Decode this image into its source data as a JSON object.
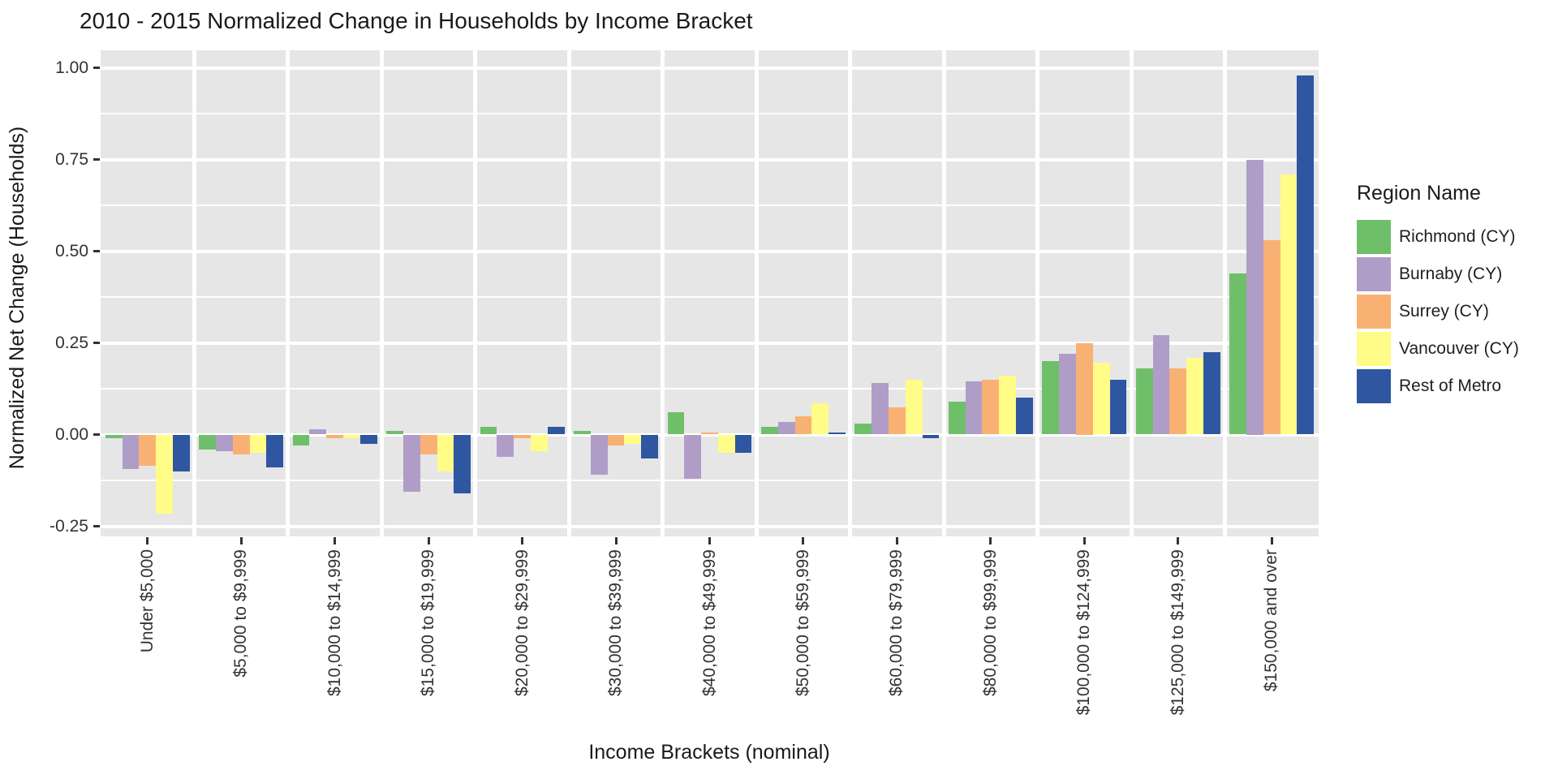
{
  "title": "2010 - 2015 Normalized Change in Households by Income Bracket",
  "legend": {
    "title": "Region Name",
    "position": "right"
  },
  "colors": {
    "panel_background": "#E6E6E6",
    "gridline": "#FFFFFF",
    "tick": "#333333",
    "richmond": "#6FBF6A",
    "burnaby": "#AF9DC8",
    "surrey": "#F9B173",
    "vancouver": "#FFFC87",
    "rest_of_metro": "#2E56A1"
  },
  "chart_data": {
    "type": "bar",
    "title": "2010 - 2015 Normalized Change in Households by Income Bracket",
    "xlabel": "Income Brackets (nominal)",
    "ylabel": "Normalized Net Change (Households)",
    "ylim": [
      -0.278,
      1.048
    ],
    "grid": "white major+minor horizontal lines and vertical group-boundary lines on gray panel",
    "legend_position": "right",
    "y_ticks": [
      {
        "value": 1.0,
        "label": "1.00"
      },
      {
        "value": 0.75,
        "label": "0.75"
      },
      {
        "value": 0.5,
        "label": "0.50"
      },
      {
        "value": 0.25,
        "label": "0.25"
      },
      {
        "value": 0.0,
        "label": "0.00"
      },
      {
        "value": -0.25,
        "label": "-0.25"
      }
    ],
    "y_minor_ticks": [
      0.875,
      0.625,
      0.375,
      0.125,
      -0.125
    ],
    "categories": [
      "Under $5,000",
      "$5,000 to $9,999",
      "$10,000 to $14,999",
      "$15,000 to $19,999",
      "$20,000 to $29,999",
      "$30,000 to $39,999",
      "$40,000 to $49,999",
      "$50,000 to $59,999",
      "$60,000 to $79,999",
      "$80,000 to $99,999",
      "$100,000 to $124,999",
      "$125,000 to $149,999",
      "$150,000 and over"
    ],
    "series": [
      {
        "name": "Richmond (CY)",
        "color": "#6FBF6A",
        "values": [
          -0.01,
          -0.04,
          -0.03,
          0.01,
          0.02,
          0.01,
          0.06,
          0.02,
          0.03,
          0.09,
          0.2,
          0.18,
          0.44
        ]
      },
      {
        "name": "Burnaby (CY)",
        "color": "#AF9DC8",
        "values": [
          -0.095,
          -0.045,
          0.015,
          -0.155,
          -0.06,
          -0.11,
          -0.12,
          0.035,
          0.14,
          0.145,
          0.22,
          0.27,
          0.75
        ]
      },
      {
        "name": "Surrey (CY)",
        "color": "#F9B173",
        "values": [
          -0.085,
          -0.055,
          -0.01,
          -0.055,
          -0.01,
          -0.03,
          0.005,
          0.05,
          0.075,
          0.15,
          0.25,
          0.18,
          0.53
        ]
      },
      {
        "name": "Vancouver (CY)",
        "color": "#FFFC87",
        "values": [
          -0.215,
          -0.05,
          -0.01,
          -0.1,
          -0.045,
          -0.025,
          -0.05,
          0.085,
          0.15,
          0.16,
          0.195,
          0.21,
          0.71
        ]
      },
      {
        "name": "Rest of Metro",
        "color": "#2E56A1",
        "values": [
          -0.1,
          -0.09,
          -0.025,
          -0.16,
          0.02,
          -0.065,
          -0.05,
          0.005,
          -0.01,
          0.1,
          0.15,
          0.225,
          0.98
        ]
      }
    ]
  }
}
